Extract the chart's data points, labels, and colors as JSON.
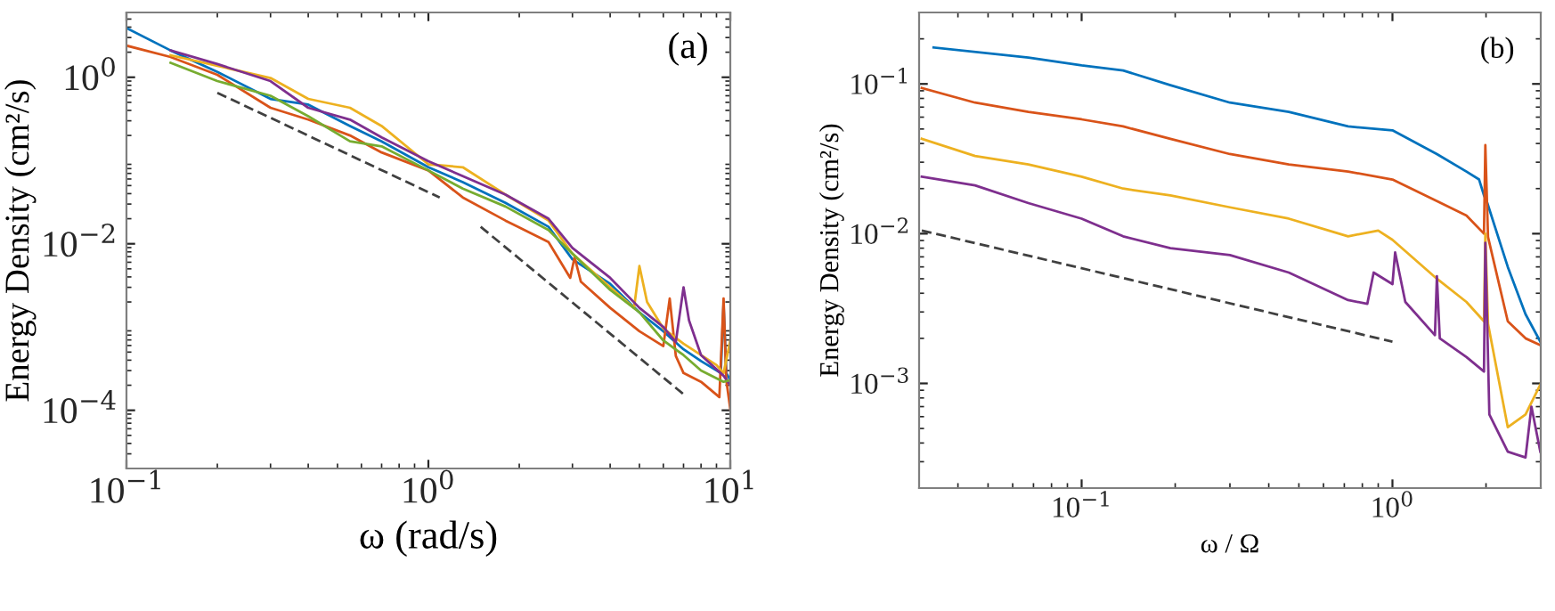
{
  "chart_data": [
    {
      "type": "line",
      "xlabel": "ω (rad/s)",
      "ylabel": "Energy Density (cm²/s)",
      "annotations": [
        "(a)"
      ],
      "log": "xy",
      "grid": false,
      "legend": false,
      "xlim": [
        0.1,
        10
      ],
      "ylim": [
        2e-05,
        6
      ],
      "xticks": [
        {
          "value": 0.1,
          "label": "10$^{−1}$"
        },
        {
          "value": 1,
          "label": "10$^{0}$"
        },
        {
          "value": 10,
          "label": "10$^{1}$"
        }
      ],
      "yticks": [
        {
          "value": 0.0001,
          "label": "10$^{−4}$"
        },
        {
          "value": 0.01,
          "label": "10$^{−2}$"
        },
        {
          "value": 1,
          "label": "10$^{0}$"
        }
      ],
      "series": [
        {
          "color": "#0072bd",
          "x": [
            0.1,
            0.14,
            0.2,
            0.3,
            0.4,
            0.55,
            0.7,
            1.0,
            1.3,
            1.8,
            2.5,
            3,
            4,
            5,
            6,
            7,
            8,
            9.3,
            9.5,
            9.7,
            10
          ],
          "values": [
            3.9,
            2.1,
            1.16,
            0.55,
            0.47,
            0.26,
            0.17,
            0.083,
            0.055,
            0.031,
            0.016,
            0.0065,
            0.0033,
            0.0015,
            0.00089,
            0.00054,
            0.00039,
            0.00028,
            0.0019,
            0.00028,
            0.00023
          ]
        },
        {
          "color": "#d95319",
          "x": [
            0.1,
            0.14,
            0.2,
            0.3,
            0.4,
            0.55,
            0.7,
            1.0,
            1.3,
            1.8,
            2.5,
            2.95,
            3.05,
            3.2,
            4,
            5,
            6,
            6.3,
            6.6,
            7,
            8,
            9.2,
            9.5,
            9.7,
            10
          ],
          "values": [
            2.4,
            1.75,
            1.07,
            0.43,
            0.31,
            0.2,
            0.125,
            0.076,
            0.036,
            0.019,
            0.0105,
            0.0039,
            0.0069,
            0.0035,
            0.0017,
            0.00089,
            0.00059,
            0.0022,
            0.00045,
            0.00028,
            0.00022,
            0.000144,
            0.0022,
            0.00023,
            0.000103
          ]
        },
        {
          "color": "#edb120",
          "x": [
            0.14,
            0.2,
            0.3,
            0.4,
            0.55,
            0.7,
            1.0,
            1.3,
            1.8,
            2.5,
            3,
            4,
            4.8,
            5,
            5.3,
            6,
            7,
            8,
            9,
            9.5,
            10
          ],
          "values": [
            1.84,
            1.37,
            0.98,
            0.55,
            0.43,
            0.26,
            0.09,
            0.083,
            0.039,
            0.019,
            0.0076,
            0.003,
            0.0017,
            0.0054,
            0.002,
            0.00096,
            0.00063,
            0.00046,
            0.00035,
            0.00028,
            0.00069
          ]
        },
        {
          "color": "#7e2f8e",
          "x": [
            0.14,
            0.2,
            0.3,
            0.4,
            0.55,
            0.7,
            1.0,
            1.3,
            1.8,
            2.5,
            3,
            4,
            5,
            6,
            6.6,
            7,
            7.3,
            8,
            9.5,
            10
          ],
          "values": [
            2.1,
            1.44,
            0.9,
            0.43,
            0.31,
            0.19,
            0.098,
            0.065,
            0.039,
            0.02,
            0.0089,
            0.0039,
            0.0017,
            0.001,
            0.00066,
            0.003,
            0.0012,
            0.00046,
            0.00026,
            0.0002
          ]
        },
        {
          "color": "#77ac30",
          "x": [
            0.14,
            0.2,
            0.3,
            0.4,
            0.55,
            0.7,
            1.0,
            1.3,
            1.8,
            2.5,
            3,
            4,
            5,
            6,
            7,
            8,
            9.5,
            10
          ],
          "values": [
            1.49,
            0.9,
            0.6,
            0.34,
            0.17,
            0.148,
            0.076,
            0.046,
            0.028,
            0.0146,
            0.0076,
            0.0028,
            0.0015,
            0.00069,
            0.00046,
            0.0003,
            0.00022,
            0.00023
          ]
        },
        {
          "color": "#404040",
          "line_style": "dashed",
          "x": [
            0.2,
            1.09
          ],
          "values": [
            0.65,
            0.036
          ]
        },
        {
          "color": "#404040",
          "line_style": "dashed",
          "x": [
            1.49,
            7.0
          ],
          "values": [
            0.016,
            0.000156
          ]
        }
      ]
    },
    {
      "type": "line",
      "xlabel": "ω / Ω",
      "ylabel": "Energy Density (cm²/s)",
      "annotations": [
        "(b)"
      ],
      "log": "xy",
      "grid": false,
      "legend": false,
      "xlim": [
        0.03,
        3
      ],
      "ylim": [
        0.0002,
        0.3
      ],
      "xticks": [
        {
          "value": 0.1,
          "label": "10$^{−1}$"
        },
        {
          "value": 1,
          "label": "10$^{0}$"
        }
      ],
      "yticks": [
        {
          "value": 0.001,
          "label": "10$^{−3}$"
        },
        {
          "value": 0.01,
          "label": "10$^{−2}$"
        },
        {
          "value": 0.1,
          "label": "10$^{−1}$"
        }
      ],
      "series": [
        {
          "color": "#0072bd",
          "x": [
            0.0334,
            0.0674,
            0.1,
            0.136,
            0.193,
            0.3,
            0.464,
            0.72,
            1.0,
            1.39,
            1.73,
            1.9,
            1.97,
            2.02,
            2.35,
            2.68,
            2.99
          ],
          "values": [
            0.175,
            0.15,
            0.133,
            0.123,
            0.098,
            0.075,
            0.065,
            0.052,
            0.049,
            0.034,
            0.026,
            0.023,
            0.018,
            0.016,
            0.006,
            0.0029,
            0.0019
          ]
        },
        {
          "color": "#d95319",
          "x": [
            0.0306,
            0.0454,
            0.0674,
            0.1,
            0.136,
            0.193,
            0.3,
            0.464,
            0.72,
            1.0,
            1.39,
            1.73,
            1.97,
            1.99,
            2.03,
            2.35,
            2.68,
            2.99
          ],
          "values": [
            0.094,
            0.075,
            0.065,
            0.058,
            0.052,
            0.043,
            0.034,
            0.029,
            0.026,
            0.023,
            0.0165,
            0.0132,
            0.01,
            0.039,
            0.0095,
            0.0026,
            0.002,
            0.0018
          ]
        },
        {
          "color": "#edb120",
          "x": [
            0.0306,
            0.0454,
            0.0674,
            0.1,
            0.136,
            0.193,
            0.3,
            0.464,
            0.72,
            0.9,
            1.0,
            1.39,
            1.73,
            1.97,
            1.99,
            2.03,
            2.35,
            2.68,
            2.99
          ],
          "values": [
            0.043,
            0.033,
            0.029,
            0.024,
            0.02,
            0.018,
            0.015,
            0.0126,
            0.0096,
            0.0105,
            0.0091,
            0.005,
            0.0035,
            0.0026,
            0.01,
            0.0025,
            0.00051,
            0.00062,
            0.00098
          ]
        },
        {
          "color": "#7e2f8e",
          "x": [
            0.0306,
            0.0454,
            0.0674,
            0.1,
            0.136,
            0.193,
            0.3,
            0.464,
            0.72,
            0.83,
            0.87,
            1.0,
            1.02,
            1.1,
            1.37,
            1.39,
            1.42,
            1.73,
            1.97,
            1.99,
            2.05,
            2.35,
            2.68,
            2.8,
            2.99
          ],
          "values": [
            0.024,
            0.021,
            0.016,
            0.0126,
            0.0096,
            0.008,
            0.0072,
            0.0055,
            0.0036,
            0.0034,
            0.0055,
            0.0046,
            0.0075,
            0.0035,
            0.0021,
            0.0052,
            0.002,
            0.0015,
            0.0012,
            0.0087,
            0.00062,
            0.00035,
            0.00032,
            0.0007,
            0.00035
          ]
        },
        {
          "color": "#404040",
          "line_style": "dashed",
          "x": [
            0.0306,
            1.0
          ],
          "values": [
            0.0105,
            0.0019
          ]
        }
      ]
    }
  ]
}
